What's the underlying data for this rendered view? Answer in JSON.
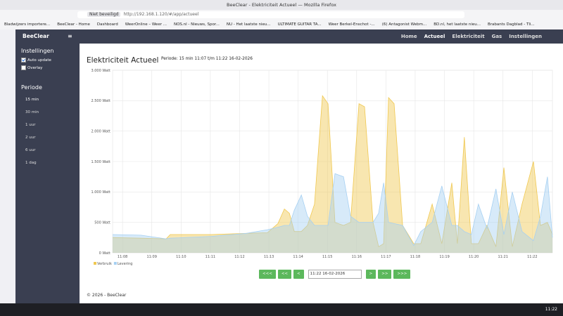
{
  "browser": {
    "window_title": "BeeClear - Elektriciteit Actueel — Mozilla Firefox",
    "security": "Niet beveiligd",
    "url": "http://192.168.1.120/#/app/actueel",
    "bookmarks": [
      "Bladwijzers importere...",
      "BeeClear - Home",
      "Dashboard",
      "WeerOnline – Weer ...",
      "NOS.nl - Nieuws, Spor...",
      "NU - Het laatste nieu...",
      "ULTIMATE GUITAR TA...",
      "Weer Berkel-Enschot -...",
      "(6) Antagonist Webm...",
      "BD.nl, het laatste nieu...",
      "Brabants Dagblad - Tli..."
    ]
  },
  "app": {
    "brand": "BeeClear",
    "nav": [
      "Home",
      "Actueel",
      "Elektriciteit",
      "Gas",
      "Instellingen"
    ],
    "sidebar": {
      "settings_title": "Instellingen",
      "options": [
        {
          "label": "Auto update",
          "checked": true
        },
        {
          "label": "Overlay",
          "checked": false
        }
      ],
      "period_title": "Periode",
      "periods": [
        "15 min",
        "30 min",
        "1 uur",
        "2 uur",
        "6 uur",
        "1 dag"
      ]
    },
    "page_title": "Elektriciteit Actueel",
    "period_info": "Periode: 15 min 11:07 t/m 11:22 16-02-2026",
    "controls": {
      "back": [
        "<<<",
        "<<",
        "<"
      ],
      "date": "11:22 16-02-2026",
      "forward": [
        ">",
        ">>",
        ">>>"
      ]
    },
    "footer": "© 2026 - BeeClear"
  },
  "chart": {
    "type": "area",
    "x": [
      7.66,
      8.63,
      9.49,
      9.63,
      11.03,
      12.23,
      12.95,
      13.31,
      13.53,
      13.7,
      13.87,
      14.11,
      14.32,
      14.56,
      14.83,
      15.02,
      15.26,
      15.55,
      15.79,
      16.08,
      16.27,
      16.56,
      16.75,
      16.92,
      17.09,
      17.28,
      17.57,
      17.95,
      18.19,
      18.58,
      18.91,
      19.25,
      19.44,
      19.68,
      19.92,
      20.16,
      20.45,
      20.76,
      21.03,
      21.32,
      21.65,
      22.04,
      22.28,
      22.52,
      22.69
    ],
    "xlim": [
      7.66,
      22.69
    ],
    "xticks": [
      {
        "value": 8,
        "label": "11:08"
      },
      {
        "value": 9,
        "label": "11:09"
      },
      {
        "value": 10,
        "label": "11:10"
      },
      {
        "value": 11,
        "label": "11:11"
      },
      {
        "value": 12,
        "label": "11:12"
      },
      {
        "value": 13,
        "label": "11:13"
      },
      {
        "value": 14,
        "label": "11:14"
      },
      {
        "value": 15,
        "label": "11:15"
      },
      {
        "value": 16,
        "label": "11:16"
      },
      {
        "value": 17,
        "label": "11:17"
      },
      {
        "value": 18,
        "label": "11:18"
      },
      {
        "value": 19,
        "label": "11:19"
      },
      {
        "value": 20,
        "label": "11:20"
      },
      {
        "value": 21,
        "label": "11:21"
      },
      {
        "value": 22,
        "label": "11:22"
      }
    ],
    "ylim": [
      0,
      3000
    ],
    "yticks": [
      {
        "value": 0,
        "label": "0 Watt"
      },
      {
        "value": 500,
        "label": "500 Watt"
      },
      {
        "value": 1000,
        "label": "1.000 Watt"
      },
      {
        "value": 1500,
        "label": "1.500 Watt"
      },
      {
        "value": 2000,
        "label": "2.000 Watt"
      },
      {
        "value": 2500,
        "label": "2.500 Watt"
      },
      {
        "value": 3000,
        "label": "3.000 Watt"
      }
    ],
    "grid": true,
    "series": [
      {
        "name": "Verbruik",
        "color": "#f0c850",
        "values": [
          250,
          240,
          230,
          300,
          300,
          320,
          330,
          480,
          720,
          650,
          350,
          350,
          450,
          800,
          2580,
          2450,
          500,
          450,
          500,
          2450,
          2400,
          500,
          100,
          150,
          2550,
          2450,
          450,
          150,
          150,
          800,
          150,
          1150,
          150,
          1900,
          150,
          150,
          450,
          100,
          1400,
          100,
          800,
          1500,
          450,
          500,
          300
        ]
      },
      {
        "name": "Levering",
        "color": "#a6d0f2",
        "values": [
          300,
          290,
          230,
          240,
          270,
          320,
          380,
          420,
          450,
          450,
          700,
          950,
          600,
          450,
          450,
          450,
          1300,
          1250,
          600,
          500,
          500,
          500,
          650,
          1150,
          500,
          480,
          450,
          120,
          350,
          500,
          1100,
          450,
          450,
          350,
          300,
          800,
          400,
          1050,
          300,
          1000,
          350,
          200,
          600,
          1250,
          250
        ]
      }
    ]
  },
  "taskbar": {
    "clock": "11:22"
  }
}
